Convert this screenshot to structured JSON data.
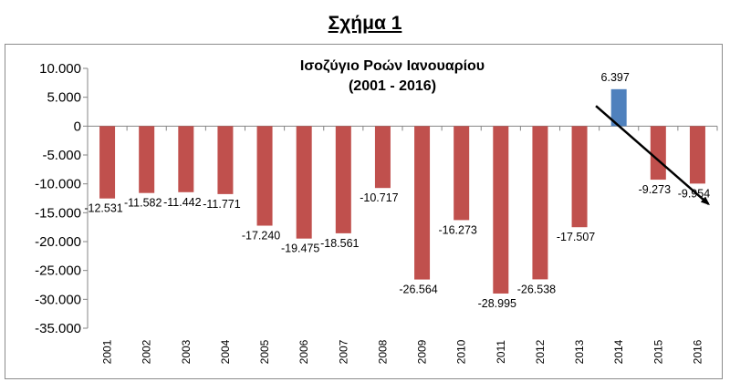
{
  "figure_title": "Σχήμα 1",
  "chart_data": {
    "type": "bar",
    "title": "Ισοζύγιο Ροών Ιανουαρίου",
    "subtitle": "(2001 - 2016)",
    "categories": [
      "2001",
      "2002",
      "2003",
      "2004",
      "2005",
      "2006",
      "2007",
      "2008",
      "2009",
      "2010",
      "2011",
      "2012",
      "2013",
      "2014",
      "2015",
      "2016"
    ],
    "values": [
      -12531,
      -11582,
      -11442,
      -11771,
      -17240,
      -19475,
      -18561,
      -10717,
      -26564,
      -16273,
      -28995,
      -26538,
      -17507,
      6397,
      -9273,
      -9954
    ],
    "value_labels": [
      "-12.531",
      "-11.582",
      "-11.442",
      "-11.771",
      "-17.240",
      "-19.475",
      "-18.561",
      "-10.717",
      "-26.564",
      "-16.273",
      "-28.995",
      "-26.538",
      "-17.507",
      "6.397",
      "-9.273",
      "-9.954"
    ],
    "ylim": [
      -35000,
      10000
    ],
    "yticks": [
      10000,
      5000,
      0,
      -5000,
      -10000,
      -15000,
      -20000,
      -25000,
      -30000,
      -35000
    ],
    "ytick_labels": [
      "10.000",
      "5.000",
      "0",
      "-5.000",
      "-10.000",
      "-15.000",
      "-20.000",
      "-25.000",
      "-30.000",
      "-35.000"
    ],
    "grid": false,
    "legend": "none",
    "colors": {
      "negative": "#c0504d",
      "positive": "#4f81bd",
      "trend_arrow": "#000000"
    },
    "annotations": [
      {
        "type": "arrow",
        "from": {
          "x": "2013",
          "y": 3500
        },
        "to": {
          "x": "2016",
          "y": -13500
        }
      }
    ]
  }
}
